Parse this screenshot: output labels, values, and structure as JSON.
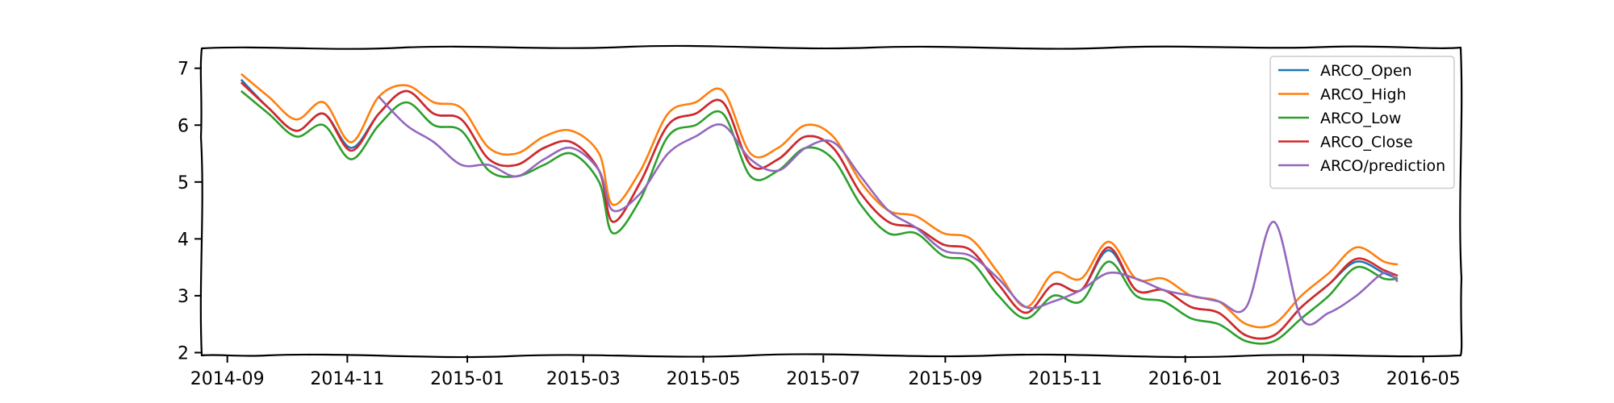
{
  "chart_data": {
    "type": "line",
    "title": "",
    "xlabel": "",
    "ylabel": "",
    "xlim": [
      "2014-08-19",
      "2016-05-20"
    ],
    "ylim": [
      1.95,
      7.35
    ],
    "x_ticks": [
      "2014-09-01",
      "2014-11-01",
      "2015-01-01",
      "2015-03-01",
      "2015-05-01",
      "2015-07-01",
      "2015-09-01",
      "2015-11-01",
      "2016-01-01",
      "2016-03-01",
      "2016-05-01"
    ],
    "x_tick_labels": [
      "2014-09",
      "2014-11",
      "2015-01",
      "2015-03",
      "2015-05",
      "2015-07",
      "2015-09",
      "2015-11",
      "2016-01",
      "2016-03",
      "2016-05"
    ],
    "y_ticks": [
      2,
      3,
      4,
      5,
      6,
      7
    ],
    "y_tick_labels": [
      "2",
      "3",
      "4",
      "5",
      "6",
      "7"
    ],
    "grid": false,
    "legend_position": "top-right",
    "x": [
      "2014-09-08",
      "2014-09-22",
      "2014-10-06",
      "2014-10-20",
      "2014-11-03",
      "2014-11-17",
      "2014-12-01",
      "2014-12-15",
      "2014-12-29",
      "2015-01-12",
      "2015-01-26",
      "2015-02-09",
      "2015-02-23",
      "2015-03-09",
      "2015-03-16",
      "2015-03-30",
      "2015-04-13",
      "2015-04-27",
      "2015-05-11",
      "2015-05-25",
      "2015-06-08",
      "2015-06-22",
      "2015-07-06",
      "2015-07-20",
      "2015-08-03",
      "2015-08-17",
      "2015-08-31",
      "2015-09-14",
      "2015-09-28",
      "2015-10-12",
      "2015-10-26",
      "2015-11-09",
      "2015-11-23",
      "2015-12-07",
      "2015-12-21",
      "2016-01-04",
      "2016-01-18",
      "2016-02-01",
      "2016-02-15",
      "2016-02-29",
      "2016-03-14",
      "2016-03-28",
      "2016-04-11",
      "2016-04-18"
    ],
    "series": [
      {
        "name": "ARCO_Open",
        "color": "#1f77b4",
        "values": [
          6.8,
          6.3,
          5.9,
          6.2,
          5.6,
          6.2,
          6.6,
          6.2,
          6.1,
          5.4,
          5.3,
          5.6,
          5.7,
          5.2,
          4.3,
          5.0,
          6.0,
          6.2,
          6.4,
          5.3,
          5.4,
          5.8,
          5.6,
          4.8,
          4.3,
          4.2,
          3.9,
          3.8,
          3.2,
          2.7,
          3.2,
          3.1,
          3.8,
          3.1,
          3.1,
          2.8,
          2.7,
          2.3,
          2.3,
          2.8,
          3.2,
          3.6,
          3.4,
          3.3
        ]
      },
      {
        "name": "ARCO_High",
        "color": "#ff7f0e",
        "values": [
          6.9,
          6.5,
          6.1,
          6.4,
          5.7,
          6.5,
          6.7,
          6.4,
          6.3,
          5.6,
          5.5,
          5.8,
          5.9,
          5.5,
          4.6,
          5.2,
          6.2,
          6.4,
          6.6,
          5.5,
          5.6,
          6.0,
          5.8,
          5.0,
          4.5,
          4.4,
          4.1,
          4.0,
          3.4,
          2.8,
          3.4,
          3.3,
          3.95,
          3.3,
          3.3,
          3.0,
          2.9,
          2.5,
          2.5,
          3.0,
          3.4,
          3.85,
          3.6,
          3.55
        ]
      },
      {
        "name": "ARCO_Low",
        "color": "#2ca02c",
        "values": [
          6.6,
          6.2,
          5.8,
          6.0,
          5.4,
          6.0,
          6.4,
          6.0,
          5.9,
          5.2,
          5.1,
          5.3,
          5.5,
          5.0,
          4.1,
          4.7,
          5.8,
          6.0,
          6.2,
          5.1,
          5.2,
          5.6,
          5.4,
          4.6,
          4.1,
          4.1,
          3.7,
          3.6,
          3.0,
          2.6,
          3.0,
          2.9,
          3.6,
          3.0,
          2.9,
          2.6,
          2.5,
          2.2,
          2.2,
          2.6,
          3.0,
          3.5,
          3.3,
          3.3
        ]
      },
      {
        "name": "ARCO_Close",
        "color": "#d62728",
        "values": [
          6.75,
          6.3,
          5.9,
          6.2,
          5.55,
          6.2,
          6.6,
          6.2,
          6.1,
          5.4,
          5.3,
          5.6,
          5.7,
          5.2,
          4.3,
          5.0,
          6.0,
          6.2,
          6.4,
          5.3,
          5.4,
          5.8,
          5.6,
          4.8,
          4.3,
          4.2,
          3.9,
          3.8,
          3.2,
          2.7,
          3.2,
          3.1,
          3.85,
          3.1,
          3.1,
          2.8,
          2.7,
          2.3,
          2.3,
          2.8,
          3.2,
          3.65,
          3.45,
          3.35
        ]
      },
      {
        "name": "ARCO/prediction",
        "color": "#9467bd",
        "values": [
          null,
          null,
          null,
          null,
          null,
          6.5,
          6.0,
          5.7,
          5.3,
          5.3,
          5.1,
          5.4,
          5.6,
          5.2,
          4.5,
          4.8,
          5.5,
          5.8,
          6.0,
          5.4,
          5.2,
          5.6,
          5.7,
          5.1,
          4.5,
          4.2,
          3.8,
          3.7,
          3.3,
          2.8,
          2.9,
          3.1,
          3.4,
          3.3,
          3.1,
          3.0,
          2.9,
          2.8,
          4.3,
          2.6,
          2.7,
          3.0,
          3.4,
          3.25
        ]
      }
    ]
  }
}
